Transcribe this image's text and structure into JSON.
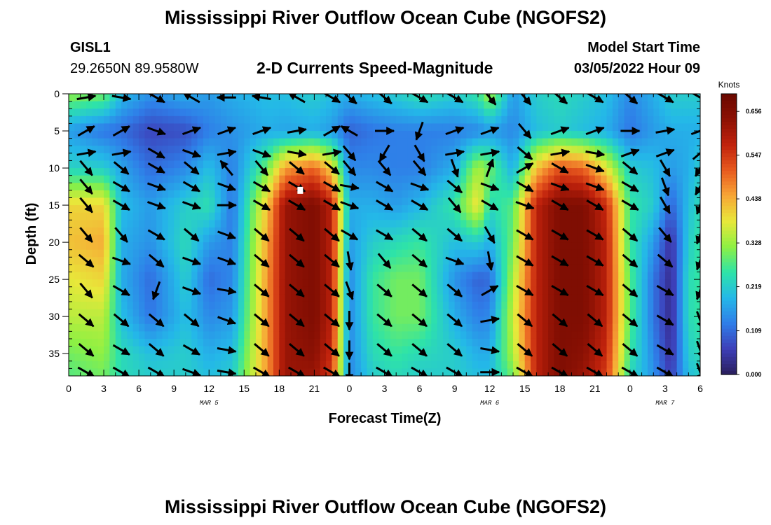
{
  "title": "Mississippi River Outflow Ocean Cube (NGOFS2)",
  "title_repeat": "Mississippi River Outflow Ocean Cube (NGOFS2)",
  "station": {
    "id": "GISL1",
    "latlon": "29.2650N  89.9580W"
  },
  "subtitle": "2-D Currents Speed-Magnitude",
  "model_start": {
    "label": "Model Start Time",
    "value": "03/05/2022 Hour 09"
  },
  "chart_data": {
    "type": "heatmap",
    "title": "2-D Currents Speed-Magnitude",
    "xlabel": "Forecast Time(Z)",
    "ylabel": "Depth (ft)",
    "xlim": [
      0,
      54
    ],
    "ylim": [
      38,
      0
    ],
    "x_ticks": [
      {
        "v": 0,
        "label": "0"
      },
      {
        "v": 3,
        "label": "3"
      },
      {
        "v": 6,
        "label": "6"
      },
      {
        "v": 9,
        "label": "9"
      },
      {
        "v": 12,
        "label": "12"
      },
      {
        "v": 15,
        "label": "15"
      },
      {
        "v": 18,
        "label": "18"
      },
      {
        "v": 21,
        "label": "21"
      },
      {
        "v": 24,
        "label": "0"
      },
      {
        "v": 27,
        "label": "3"
      },
      {
        "v": 30,
        "label": "6"
      },
      {
        "v": 33,
        "label": "9"
      },
      {
        "v": 36,
        "label": "12"
      },
      {
        "v": 39,
        "label": "15"
      },
      {
        "v": 42,
        "label": "18"
      },
      {
        "v": 45,
        "label": "21"
      },
      {
        "v": 48,
        "label": "0"
      },
      {
        "v": 51,
        "label": "3"
      },
      {
        "v": 54,
        "label": "6"
      }
    ],
    "day_labels": [
      {
        "v": 12,
        "label": "MAR 5"
      },
      {
        "v": 36,
        "label": "MAR 6"
      },
      {
        "v": 51,
        "label": "MAR 7"
      }
    ],
    "y_ticks": [
      0,
      5,
      10,
      15,
      20,
      25,
      30,
      35
    ],
    "colorbar": {
      "unit": "Knots",
      "min": 0,
      "max": 0.7,
      "tick_labels": [
        "0.000",
        "0.109",
        "0.219",
        "0.328",
        "0.438",
        "0.547",
        "0.656"
      ],
      "colors": [
        "#2a1e5c",
        "#3d3fb8",
        "#2f7de8",
        "#24b8e8",
        "#2ee3a8",
        "#8ef043",
        "#e8e83a",
        "#f7a636",
        "#e85a1f",
        "#c0220c",
        "#8c1104",
        "#6a0800"
      ]
    },
    "speed_profiles_knots": {
      "depths_ft": [
        0,
        5,
        10,
        15,
        20,
        25,
        30,
        35,
        38
      ],
      "series": [
        {
          "x": 0,
          "speeds": [
            0.32,
            0.16,
            0.23,
            0.4,
            0.42,
            0.38,
            0.35,
            0.3,
            0.28
          ]
        },
        {
          "x": 3,
          "speeds": [
            0.3,
            0.12,
            0.22,
            0.4,
            0.44,
            0.4,
            0.35,
            0.32,
            0.3
          ]
        },
        {
          "x": 4.5,
          "speeds": [
            0.2,
            0.11,
            0.17,
            0.2,
            0.18,
            0.18,
            0.2,
            0.24,
            0.24
          ]
        },
        {
          "x": 7,
          "speeds": [
            0.15,
            0.07,
            0.11,
            0.16,
            0.15,
            0.11,
            0.12,
            0.2,
            0.22
          ]
        },
        {
          "x": 10,
          "speeds": [
            0.18,
            0.08,
            0.14,
            0.22,
            0.24,
            0.22,
            0.2,
            0.22,
            0.22
          ]
        },
        {
          "x": 12,
          "speeds": [
            0.16,
            0.13,
            0.2,
            0.25,
            0.16,
            0.11,
            0.14,
            0.18,
            0.2
          ]
        },
        {
          "x": 14,
          "speeds": [
            0.18,
            0.15,
            0.13,
            0.12,
            0.13,
            0.14,
            0.16,
            0.2,
            0.22
          ]
        },
        {
          "x": 17,
          "speeds": [
            0.2,
            0.18,
            0.3,
            0.42,
            0.45,
            0.46,
            0.46,
            0.46,
            0.46
          ]
        },
        {
          "x": 18.5,
          "speeds": [
            0.2,
            0.17,
            0.45,
            0.62,
            0.62,
            0.62,
            0.62,
            0.62,
            0.62
          ]
        },
        {
          "x": 21,
          "speeds": [
            0.22,
            0.18,
            0.5,
            0.66,
            0.66,
            0.66,
            0.66,
            0.64,
            0.62
          ]
        },
        {
          "x": 22.5,
          "speeds": [
            0.2,
            0.16,
            0.4,
            0.58,
            0.58,
            0.58,
            0.58,
            0.56,
            0.54
          ]
        },
        {
          "x": 24,
          "speeds": [
            0.18,
            0.1,
            0.14,
            0.18,
            0.16,
            0.14,
            0.14,
            0.14,
            0.14
          ]
        },
        {
          "x": 26,
          "speeds": [
            0.2,
            0.12,
            0.14,
            0.18,
            0.22,
            0.26,
            0.26,
            0.24,
            0.22
          ]
        },
        {
          "x": 28,
          "speeds": [
            0.22,
            0.13,
            0.13,
            0.16,
            0.24,
            0.3,
            0.3,
            0.26,
            0.24
          ]
        },
        {
          "x": 30,
          "speeds": [
            0.25,
            0.13,
            0.13,
            0.19,
            0.26,
            0.3,
            0.3,
            0.24,
            0.22
          ]
        },
        {
          "x": 33,
          "speeds": [
            0.22,
            0.13,
            0.18,
            0.26,
            0.2,
            0.15,
            0.18,
            0.22,
            0.22
          ]
        },
        {
          "x": 35,
          "speeds": [
            0.26,
            0.14,
            0.34,
            0.4,
            0.22,
            0.1,
            0.13,
            0.18,
            0.2
          ]
        },
        {
          "x": 36,
          "speeds": [
            0.34,
            0.16,
            0.3,
            0.24,
            0.18,
            0.11,
            0.14,
            0.18,
            0.2
          ]
        },
        {
          "x": 38,
          "speeds": [
            0.16,
            0.14,
            0.18,
            0.28,
            0.3,
            0.34,
            0.36,
            0.34,
            0.3
          ]
        },
        {
          "x": 40,
          "speeds": [
            0.22,
            0.2,
            0.42,
            0.58,
            0.58,
            0.58,
            0.58,
            0.58,
            0.58
          ]
        },
        {
          "x": 42,
          "speeds": [
            0.24,
            0.22,
            0.52,
            0.66,
            0.66,
            0.66,
            0.66,
            0.66,
            0.66
          ]
        },
        {
          "x": 44,
          "speeds": [
            0.22,
            0.2,
            0.5,
            0.66,
            0.66,
            0.66,
            0.66,
            0.64,
            0.62
          ]
        },
        {
          "x": 46,
          "speeds": [
            0.2,
            0.18,
            0.38,
            0.56,
            0.58,
            0.58,
            0.58,
            0.56,
            0.54
          ]
        },
        {
          "x": 48,
          "speeds": [
            0.14,
            0.12,
            0.22,
            0.26,
            0.26,
            0.28,
            0.28,
            0.26,
            0.24
          ]
        },
        {
          "x": 50,
          "speeds": [
            0.18,
            0.16,
            0.2,
            0.22,
            0.16,
            0.12,
            0.12,
            0.14,
            0.15
          ]
        },
        {
          "x": 51.5,
          "speeds": [
            0.22,
            0.18,
            0.16,
            0.1,
            0.04,
            0.03,
            0.03,
            0.04,
            0.06
          ]
        },
        {
          "x": 53,
          "speeds": [
            0.22,
            0.18,
            0.18,
            0.2,
            0.22,
            0.24,
            0.24,
            0.22,
            0.2
          ]
        },
        {
          "x": 54,
          "speeds": [
            0.22,
            0.18,
            0.22,
            0.24,
            0.26,
            0.26,
            0.26,
            0.24,
            0.22
          ]
        }
      ]
    },
    "current_vectors": {
      "times": [
        1.5,
        4.5,
        7.5,
        10.5,
        13.5,
        16.5,
        19.5,
        22.5,
        24,
        27,
        30,
        33,
        36,
        39,
        42,
        45,
        48,
        51,
        54
      ],
      "depths_ft": [
        0.5,
        5,
        8,
        10,
        12.5,
        15,
        19,
        22.5,
        26.5,
        30.5,
        34.5,
        37.5
      ],
      "bearing_deg": [
        [
          80,
          100,
          120,
          300,
          270,
          280,
          300,
          120,
          130,
          130,
          120,
          120,
          140,
          140,
          130,
          120,
          130,
          120,
          120
        ],
        [
          60,
          60,
          110,
          70,
          70,
          70,
          80,
          60,
          300,
          90,
          200,
          70,
          70,
          140,
          70,
          70,
          90,
          80,
          70
        ],
        [
          80,
          80,
          120,
          110,
          80,
          110,
          100,
          80,
          140,
          210,
          150,
          80,
          80,
          130,
          80,
          100,
          70,
          70,
          50
        ],
        [
          140,
          130,
          120,
          130,
          320,
          140,
          130,
          130,
          140,
          140,
          140,
          160,
          20,
          60,
          120,
          110,
          130,
          150,
          210
        ],
        [
          140,
          120,
          110,
          120,
          110,
          120,
          120,
          120,
          100,
          120,
          110,
          130,
          110,
          120,
          110,
          110,
          120,
          160,
          210
        ],
        [
          140,
          120,
          110,
          110,
          90,
          120,
          120,
          120,
          110,
          120,
          120,
          140,
          120,
          110,
          120,
          120,
          120,
          150,
          200
        ],
        [
          140,
          140,
          120,
          130,
          110,
          130,
          130,
          130,
          120,
          120,
          130,
          130,
          150,
          120,
          120,
          120,
          130,
          140,
          200
        ],
        [
          130,
          110,
          130,
          110,
          110,
          130,
          130,
          130,
          170,
          140,
          130,
          110,
          170,
          120,
          120,
          120,
          130,
          130,
          200
        ],
        [
          140,
          120,
          200,
          110,
          100,
          130,
          130,
          130,
          160,
          130,
          130,
          130,
          60,
          120,
          120,
          120,
          130,
          120,
          200
        ],
        [
          130,
          130,
          130,
          130,
          110,
          130,
          130,
          130,
          180,
          130,
          130,
          130,
          80,
          130,
          130,
          130,
          130,
          120,
          160
        ],
        [
          130,
          120,
          130,
          120,
          100,
          130,
          130,
          130,
          180,
          130,
          130,
          130,
          100,
          130,
          130,
          130,
          130,
          120,
          160
        ],
        [
          120,
          120,
          120,
          110,
          100,
          120,
          120,
          120,
          180,
          120,
          120,
          120,
          90,
          120,
          120,
          120,
          120,
          120,
          160
        ]
      ]
    },
    "max_speed_marker": {
      "x": 19.8,
      "depth_ft": 13
    }
  }
}
